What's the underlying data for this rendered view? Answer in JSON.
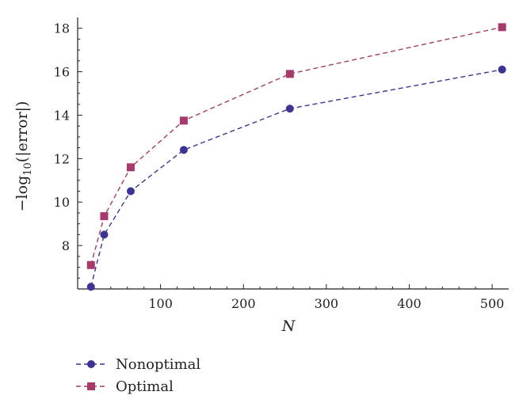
{
  "chart_data": {
    "type": "line",
    "title": "",
    "xlabel": "N",
    "ylabel": {
      "prefix": "−log",
      "subscript": "10",
      "suffix": "(|error|)"
    },
    "xlim": [
      0,
      520
    ],
    "ylim": [
      6.0,
      18.5
    ],
    "x_ticks": [
      100,
      200,
      300,
      400,
      500
    ],
    "y_ticks": [
      8,
      10,
      12,
      14,
      16,
      18
    ],
    "grid": false,
    "legend_position": "bottom-left",
    "series": [
      {
        "name": "Nonoptimal",
        "marker": "circle",
        "line_style": "dashed",
        "color": "#3b3495",
        "x": [
          16,
          32,
          64,
          128,
          256,
          512
        ],
        "y": [
          6.1,
          8.5,
          10.5,
          12.4,
          14.3,
          16.1
        ]
      },
      {
        "name": "Optimal",
        "marker": "square",
        "line_style": "dashed",
        "color": "#a83a6b",
        "x": [
          16,
          32,
          64,
          128,
          256,
          512
        ],
        "y": [
          7.1,
          9.35,
          11.6,
          13.75,
          15.9,
          18.05
        ]
      }
    ]
  }
}
